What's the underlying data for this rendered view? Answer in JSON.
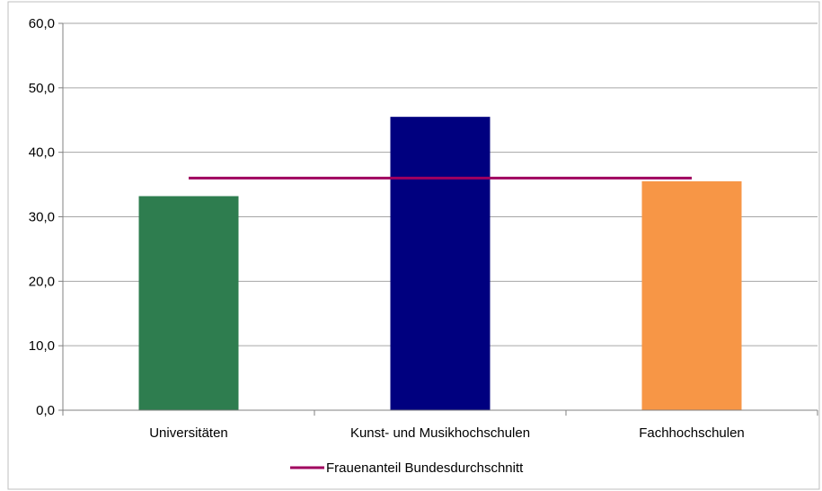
{
  "chart_data": {
    "type": "bar",
    "categories": [
      "Universitäten",
      "Kunst- und Musikhochschulen",
      "Fachhochschulen"
    ],
    "values": [
      33.2,
      45.5,
      35.5
    ],
    "bar_colors": [
      "#2e7d4f",
      "#00007f",
      "#f79646"
    ],
    "reference_line": {
      "name": "Frauenanteil Bundesdurchschnitt",
      "value": 36.0,
      "color": "#a0005f"
    },
    "yticks": [
      "0,0",
      "10,0",
      "20,0",
      "30,0",
      "40,0",
      "50,0",
      "60,0"
    ],
    "ylim": [
      0,
      60
    ],
    "grid": true,
    "legend_position": "bottom",
    "title": "",
    "xlabel": "",
    "ylabel": ""
  }
}
